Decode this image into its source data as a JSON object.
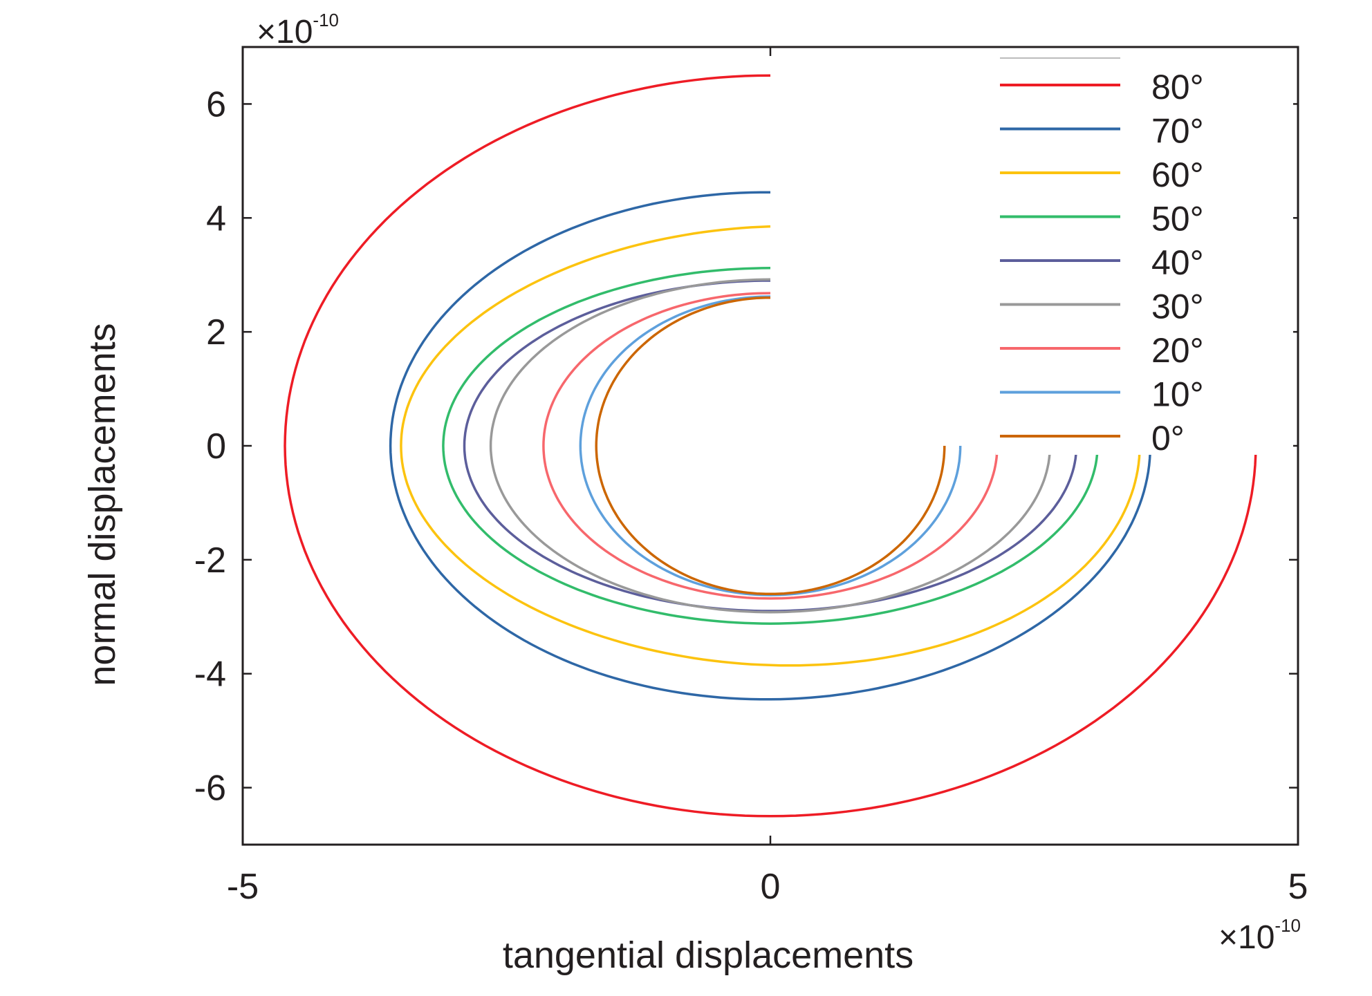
{
  "chart_data": {
    "type": "line",
    "xlabel": "tangential displacements",
    "ylabel": "normal displacements",
    "xlim": [
      -5,
      5
    ],
    "ylim": [
      -7,
      7
    ],
    "x_ticks": [
      "-5",
      "0",
      "5"
    ],
    "y_ticks": [
      "6",
      "4",
      "2",
      "0",
      "-2",
      "-4",
      "-6"
    ],
    "x_ticks_v": [
      -5,
      0,
      5
    ],
    "y_ticks_v": [
      6,
      4,
      2,
      0,
      -2,
      -4,
      -6
    ],
    "x_multiplier": {
      "base": "×10",
      "exp": "-10"
    },
    "y_multiplier": {
      "base": "×10",
      "exp": "-10"
    },
    "legend_position": "top-right",
    "grid": false,
    "series": [
      {
        "name": "80°",
        "color": "#ee1c25",
        "a": 4.6,
        "b": 6.5,
        "c": 0.0
      },
      {
        "name": "70°",
        "color": "#2e67a6",
        "a": 3.6,
        "b": 4.45,
        "c": -0.05
      },
      {
        "name": "60°",
        "color": "#fcc30f",
        "a": 3.5,
        "b": 3.85,
        "c": 0.2
      },
      {
        "name": "50°",
        "color": "#32bc6b",
        "a": 3.1,
        "b": 3.12,
        "c": 0.0
      },
      {
        "name": "40°",
        "color": "#5c5e9b",
        "a": 2.9,
        "b": 2.9,
        "c": 0.0
      },
      {
        "name": "30°",
        "color": "#999999",
        "a": 2.65,
        "b": 2.92,
        "c": 0.0
      },
      {
        "name": "20°",
        "color": "#f7676c",
        "a": 2.15,
        "b": 2.68,
        "c": 0.0
      },
      {
        "name": "10°",
        "color": "#5ea0dc",
        "a": 1.8,
        "b": 2.62,
        "c": 0.0
      },
      {
        "name": "0°",
        "color": "#cc6600",
        "a": 1.65,
        "b": 2.6,
        "c": 0.0
      }
    ]
  }
}
